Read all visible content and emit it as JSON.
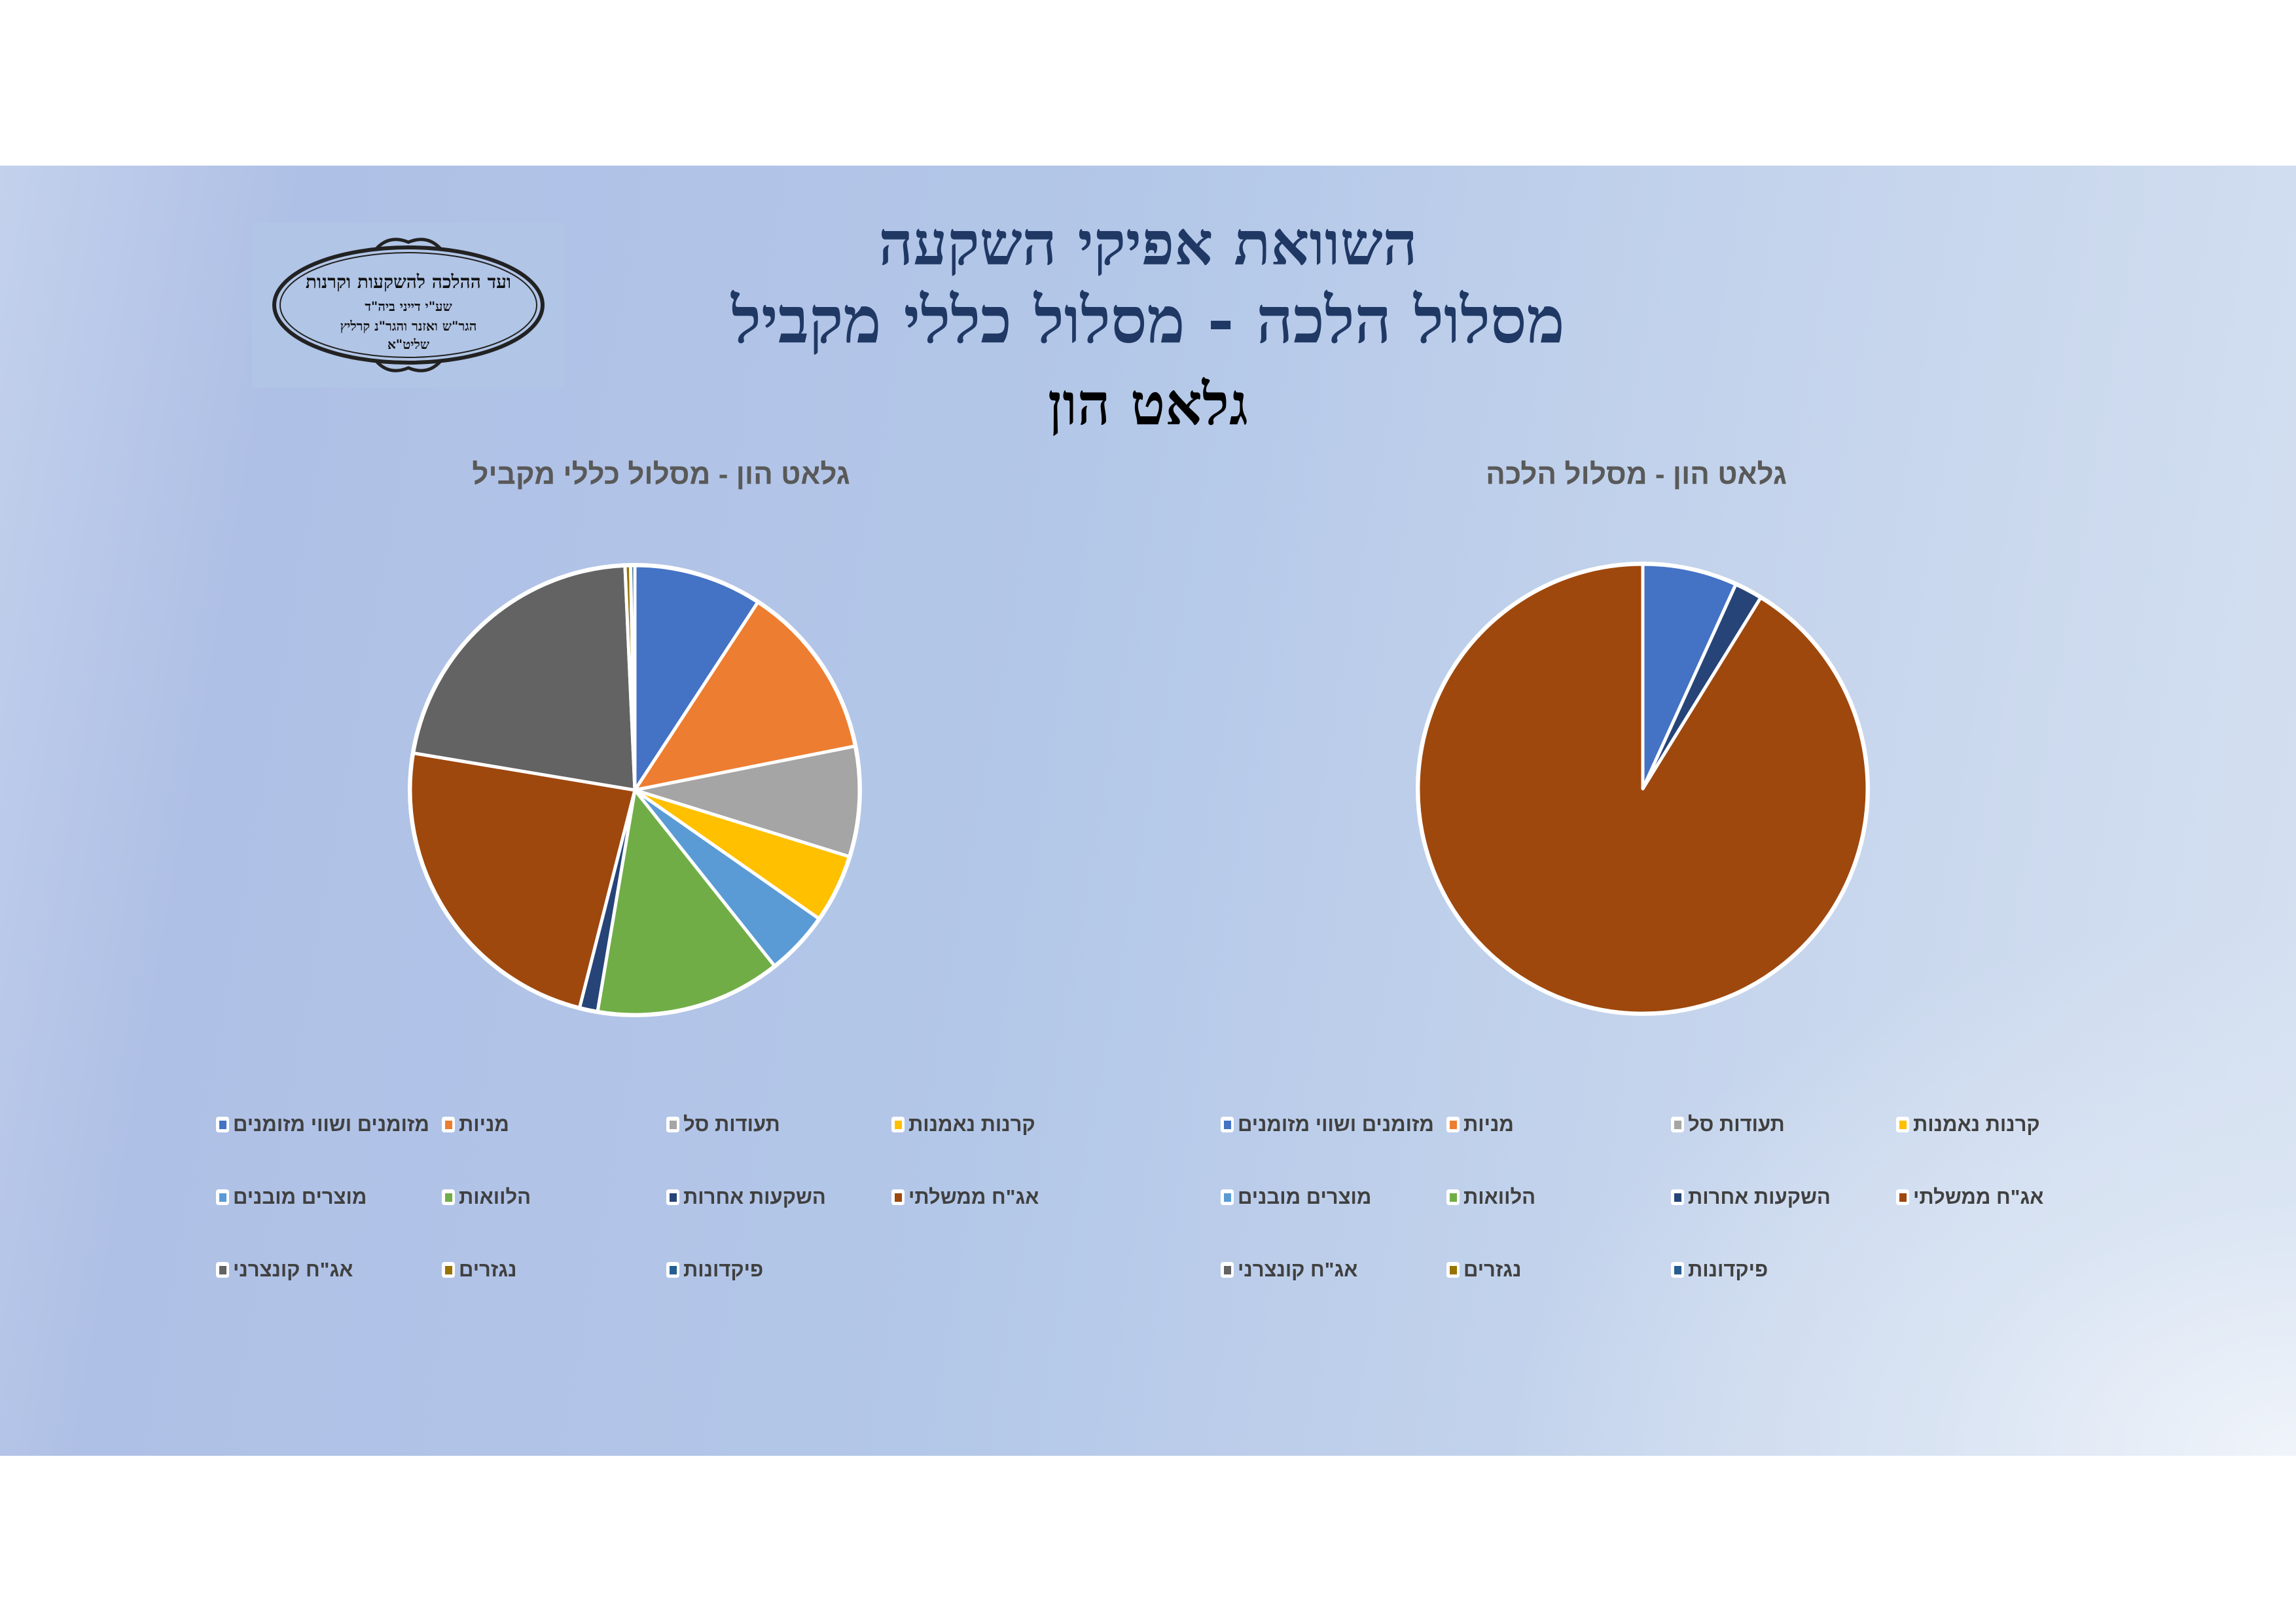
{
  "header": {
    "line1": "השוואת אפיקי השקעה",
    "line2": "מסלול הלכה - מסלול כללי מקביל",
    "line3": "גלאט הון"
  },
  "logo": {
    "line1": "ועד ההלכה להשקעות וקרנות",
    "line2": "שע\"י דייני ביה\"ד",
    "line3": "הגר\"ש ואזנר והגר\"נ קרליץ",
    "line4": "שליט\"א"
  },
  "colors": {
    "title_navy": "#1f3864",
    "slice_border": "#ffffff"
  },
  "legend_items": [
    {
      "label": "מזומנים ושווי מזומנים",
      "color": "#4472c4"
    },
    {
      "label": "מניות",
      "color": "#ed7d31"
    },
    {
      "label": "תעודות סל",
      "color": "#a5a5a5"
    },
    {
      "label": "קרנות נאמנות",
      "color": "#ffc000"
    },
    {
      "label": "מוצרים מובנים",
      "color": "#5b9bd5"
    },
    {
      "label": "הלוואות",
      "color": "#70ad47"
    },
    {
      "label": "השקעות אחרות",
      "color": "#264478"
    },
    {
      "label": "אג\"ח ממשלתי",
      "color": "#9e480e"
    },
    {
      "label": "אג\"ח קונצרני",
      "color": "#636363"
    },
    {
      "label": "נגזרים",
      "color": "#997300"
    },
    {
      "label": "פיקדונות",
      "color": "#255e91"
    }
  ],
  "chart_data": [
    {
      "type": "pie",
      "title": "גלאט הון - מסלול כללי מקביל",
      "legend_position": "bottom",
      "categories": [
        "מזומנים ושווי מזומנים",
        "מניות",
        "תעודות סל",
        "קרנות נאמנות",
        "מוצרים מובנים",
        "הלוואות",
        "השקעות אחרות",
        "אג\"ח ממשלתי",
        "אג\"ח קונצרני",
        "נגזרים",
        "פיקדונות"
      ],
      "values": [
        9.2,
        12.6,
        7.9,
        4.9,
        4.6,
        13.3,
        1.3,
        23.6,
        21.6,
        0.4,
        0.3
      ],
      "colors": [
        "#4472c4",
        "#ed7d31",
        "#a5a5a5",
        "#ffc000",
        "#5b9bd5",
        "#70ad47",
        "#264478",
        "#9e480e",
        "#636363",
        "#997300",
        "#255e91"
      ],
      "unit": "%"
    },
    {
      "type": "pie",
      "title": "גלאט הון - מסלול הלכה",
      "legend_position": "bottom",
      "categories": [
        "מזומנים ושווי מזומנים",
        "מניות",
        "תעודות סל",
        "קרנות נאמנות",
        "מוצרים מובנים",
        "הלוואות",
        "השקעות אחרות",
        "אג\"ח ממשלתי",
        "אג\"ח קונצרני",
        "נגזרים",
        "פיקדונות"
      ],
      "values": [
        6.8,
        0,
        0,
        0,
        0,
        0,
        2.0,
        91.2,
        0,
        0,
        0
      ],
      "colors": [
        "#4472c4",
        "#ed7d31",
        "#a5a5a5",
        "#ffc000",
        "#5b9bd5",
        "#70ad47",
        "#264478",
        "#9e480e",
        "#636363",
        "#997300",
        "#255e91"
      ],
      "unit": "%"
    }
  ]
}
